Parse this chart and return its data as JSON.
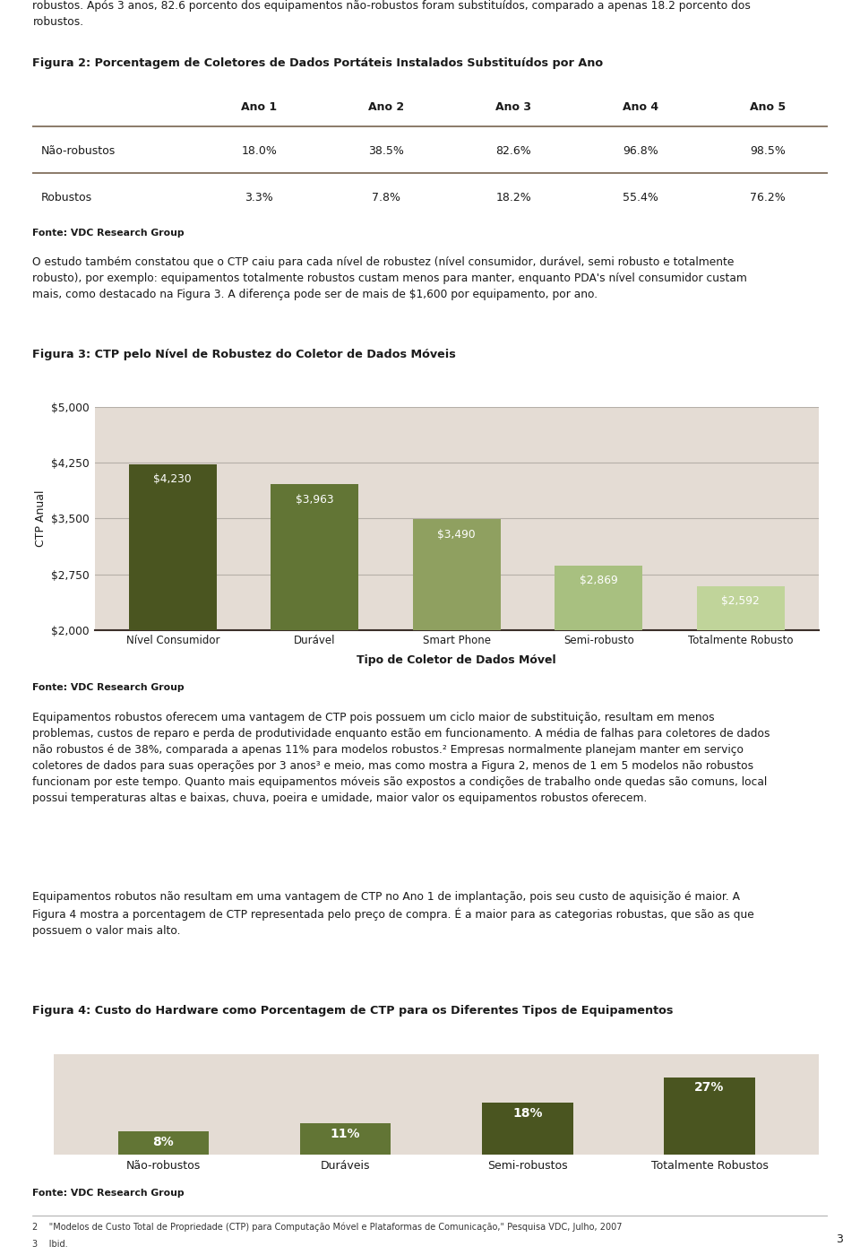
{
  "page_bg": "#ffffff",
  "text_color": "#1a1a1a",
  "top_text_line1": "robustos. Após 3 anos, 82.6 porcento dos equipamentos não-robustos foram substituídos, comparado a apenas 18.2 porcento dos",
  "top_text_line2": "robustos.",
  "fig2_title": "Figura 2: Porcentagem de Coletores de Dados Portáteis Instalados Substituídos por Ano",
  "table_bg": "#e4dcd4",
  "table_headers": [
    "",
    "Ano 1",
    "Ano 2",
    "Ano 3",
    "Ano 4",
    "Ano 5"
  ],
  "table_row1": [
    "Não-robustos",
    "18.0%",
    "38.5%",
    "82.6%",
    "96.8%",
    "98.5%"
  ],
  "table_row2": [
    "Robustos",
    "3.3%",
    "7.8%",
    "18.2%",
    "55.4%",
    "76.2%"
  ],
  "fonte_text": "Fonte: VDC Research Group",
  "body_text1": "O estudo também constatou que o CTP caiu para cada nível de robustez (nível consumidor, durável, semi robusto e totalmente\nrobusto), por exemplo: equipamentos totalmente robustos custam menos para manter, enquanto PDA's nível consumidor custam\nmais, como destacado na Figura 3. A diferença pode ser de mais de $1,600 por equipamento, por ano.",
  "fig3_title": "Figura 3: CTP pelo Nível de Robustez do Coletor de Dados Móveis",
  "chart3_bg": "#e4dcd4",
  "chart3_categories": [
    "Nível Consumidor",
    "Durável",
    "Smart Phone",
    "Semi-robusto",
    "Totalmente Robusto"
  ],
  "chart3_values": [
    4230,
    3963,
    3490,
    2869,
    2592
  ],
  "chart3_colors": [
    "#4a5520",
    "#627535",
    "#8fa060",
    "#a8c080",
    "#c0d49a"
  ],
  "chart3_ylabel": "CTP Anual",
  "chart3_xlabel": "Tipo de Coletor de Dados Móvel",
  "chart3_ylim": [
    2000,
    5000
  ],
  "chart3_yticks": [
    2000,
    2750,
    3500,
    4250,
    5000
  ],
  "chart3_ytick_labels": [
    "$2,000",
    "$2,750",
    "$3,500",
    "$4,250",
    "$5,000"
  ],
  "body_text2": "Equipamentos robustos oferecem uma vantagem de CTP pois possuem um ciclo maior de substituição, resultam em menos\nproblemas, custos de reparo e perda de produtividade enquanto estão em funcionamento. A média de falhas para coletores de dados\nnão robustos é de 38%, comparada a apenas 11% para modelos robustos.² Empresas normalmente planejam manter em serviço\ncoletores de dados para suas operações por 3 anos³ e meio, mas como mostra a Figura 2, menos de 1 em 5 modelos não robustos\nfuncionam por este tempo. Quanto mais equipamentos móveis são expostos a condições de trabalho onde quedas são comuns, local\npossui temperaturas altas e baixas, chuva, poeira e umidade, maior valor os equipamentos robustos oferecem.",
  "body_text3": "Equipamentos robutos não resultam em uma vantagem de CTP no Ano 1 de implantação, pois seu custo de aquisição é maior. A\nFigura 4 mostra a porcentagem de CTP representada pelo preço de compra. É a maior para as categorias robustas, que são as que\npossuem o valor mais alto.",
  "fig4_title": "Figura 4: Custo do Hardware como Porcentagem de CTP para os Diferentes Tipos de Equipamentos",
  "chart4_bg": "#e4dcd4",
  "chart4_categories": [
    "Não-robustos",
    "Duráveis",
    "Semi-robustos",
    "Totalmente Robustos"
  ],
  "chart4_values": [
    8,
    11,
    18,
    27
  ],
  "chart4_labels": [
    "8%",
    "11%",
    "18%",
    "27%"
  ],
  "chart4_colors": [
    "#627535",
    "#627535",
    "#4a5520",
    "#4a5520"
  ],
  "chart4_ylim": [
    0,
    35
  ],
  "footnote2": "2    \"Modelos de Custo Total de Propriedade (CTP) para Computação Móvel e Plataformas de Comunicação,\" Pesquisa VDC, Julho, 2007",
  "footnote3": "3    Ibid.",
  "page_number": "3"
}
